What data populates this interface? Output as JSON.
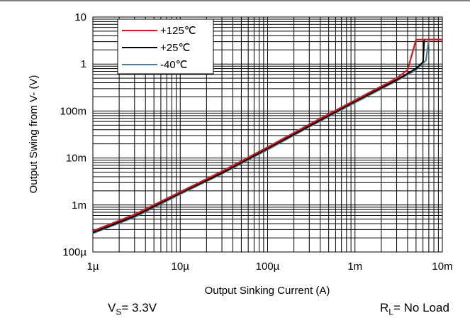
{
  "chart_data": {
    "type": "line",
    "x_scale": "log",
    "y_scale": "log",
    "xlabel": "Output Sinking Current (A)",
    "ylabel": "Output Swing from V- (V)",
    "xlim": [
      1e-06,
      0.01
    ],
    "ylim": [
      0.0001,
      10
    ],
    "x_ticks": [
      {
        "value": 1e-06,
        "label": "1µ"
      },
      {
        "value": 1e-05,
        "label": "10µ"
      },
      {
        "value": 0.0001,
        "label": "100µ"
      },
      {
        "value": 0.001,
        "label": "1m"
      },
      {
        "value": 0.01,
        "label": "10m"
      }
    ],
    "y_ticks": [
      {
        "value": 10,
        "label": "10"
      },
      {
        "value": 1,
        "label": "1"
      },
      {
        "value": 0.1,
        "label": "100m"
      },
      {
        "value": 0.01,
        "label": "10m"
      },
      {
        "value": 0.001,
        "label": "1m"
      },
      {
        "value": 0.0001,
        "label": "100µ"
      }
    ],
    "grid": true,
    "legend_position": "top-left",
    "series": [
      {
        "name": "+125℃",
        "color": "#e8121c",
        "x": [
          1e-06,
          3e-06,
          1e-05,
          3e-05,
          0.0001,
          0.0003,
          0.001,
          0.003,
          0.004,
          0.005,
          0.006,
          0.01
        ],
        "y": [
          0.00028,
          0.00063,
          0.0019,
          0.0052,
          0.017,
          0.052,
          0.17,
          0.5,
          0.75,
          3.3,
          3.3,
          3.3
        ]
      },
      {
        "name": "+25℃",
        "color": "#000000",
        "x": [
          1e-06,
          3e-06,
          1e-05,
          3e-05,
          0.0001,
          0.0003,
          0.001,
          0.003,
          0.005,
          0.006,
          0.0062,
          0.01
        ],
        "y": [
          0.00026,
          0.00058,
          0.0018,
          0.0048,
          0.016,
          0.048,
          0.16,
          0.46,
          0.8,
          1.1,
          3.3,
          3.3
        ]
      },
      {
        "name": "-40℃",
        "color": "#4a8090",
        "x": [
          1e-06,
          3e-06,
          1e-05,
          3e-05,
          0.0001,
          0.0003,
          0.001,
          0.003,
          0.005,
          0.0065,
          0.007,
          0.01
        ],
        "y": [
          0.00025,
          0.00055,
          0.0017,
          0.0046,
          0.015,
          0.046,
          0.15,
          0.44,
          0.75,
          1.2,
          3.3,
          3.3
        ]
      }
    ]
  },
  "conditions": {
    "vs": {
      "prefix": "V",
      "sub": "S",
      "value": "= 3.3V"
    },
    "rl": {
      "prefix": "R",
      "sub": "L",
      "value": "= No Load"
    }
  }
}
